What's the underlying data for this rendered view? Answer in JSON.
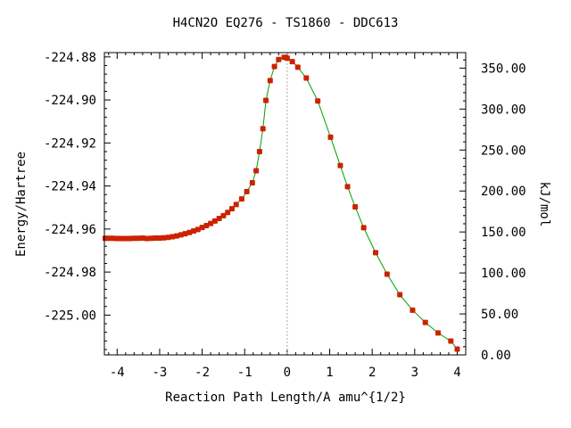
{
  "chart_data": {
    "type": "line",
    "title": "H4CN2O   EQ276 - TS1860 - DDC613",
    "xlabel": "Reaction Path Length/A amu^{1/2}",
    "ylabel": "Energy/Hartree",
    "ylabel_right": "kJ/mol",
    "xlim": [
      -4.3,
      4.2
    ],
    "ylim": [
      -225.0185,
      -224.878
    ],
    "ylim_right": [
      0.0,
      368.9
    ],
    "x_ticks": [
      -4,
      -3,
      -2,
      -1,
      0,
      1,
      2,
      3,
      4
    ],
    "x_tick_labels": [
      "-4",
      "-3",
      "-2",
      "-1",
      "0",
      "1",
      "2",
      "3",
      "4"
    ],
    "y_ticks": [
      -224.88,
      -224.9,
      -224.92,
      -224.94,
      -224.96,
      -224.98,
      -225.0
    ],
    "y_tick_labels": [
      "-224.88",
      "-224.90",
      "-224.92",
      "-224.94",
      "-224.96",
      "-224.98",
      "-225.00"
    ],
    "y_right_ticks": [
      0,
      50,
      100,
      150,
      200,
      250,
      300,
      350
    ],
    "y_right_tick_labels": [
      "0.00",
      "50.00",
      "100.00",
      "150.00",
      "200.00",
      "250.00",
      "300.00",
      "350.00"
    ],
    "ts_marker_x": 0.0,
    "grid": false,
    "series": [
      {
        "line_color": "#00a000",
        "marker_color": "#cc2200",
        "x": [
          -4.28,
          -4.2,
          -4.1,
          -4.0,
          -3.9,
          -3.8,
          -3.7,
          -3.6,
          -3.5,
          -3.4,
          -3.3,
          -3.2,
          -3.1,
          -3.0,
          -2.9,
          -2.8,
          -2.7,
          -2.6,
          -2.5,
          -2.4,
          -2.3,
          -2.2,
          -2.1,
          -2.0,
          -1.9,
          -1.8,
          -1.7,
          -1.6,
          -1.5,
          -1.4,
          -1.3,
          -1.2,
          -1.07,
          -0.95,
          -0.82,
          -0.73,
          -0.65,
          -0.57,
          -0.5,
          -0.4,
          -0.3,
          -0.2,
          -0.07,
          0.0,
          0.12,
          0.25,
          0.45,
          0.72,
          1.02,
          1.25,
          1.42,
          1.6,
          1.8,
          2.08,
          2.35,
          2.65,
          2.95,
          3.25,
          3.55,
          3.85,
          4.0
        ],
        "y": [
          -224.9643,
          -224.9643,
          -224.9643,
          -224.9644,
          -224.9644,
          -224.9644,
          -224.9644,
          -224.9643,
          -224.9643,
          -224.9642,
          -224.9644,
          -224.9643,
          -224.9642,
          -224.9642,
          -224.9641,
          -224.9639,
          -224.9636,
          -224.9632,
          -224.9627,
          -224.9622,
          -224.9616,
          -224.9609,
          -224.9602,
          -224.9593,
          -224.9584,
          -224.9574,
          -224.9563,
          -224.9551,
          -224.9538,
          -224.9523,
          -224.9506,
          -224.9486,
          -224.946,
          -224.9426,
          -224.9385,
          -224.9329,
          -224.924,
          -224.9134,
          -224.9002,
          -224.891,
          -224.8845,
          -224.8812,
          -224.8802,
          -224.8806,
          -224.8822,
          -224.8848,
          -224.8898,
          -224.9005,
          -224.9173,
          -224.9305,
          -224.9403,
          -224.9497,
          -224.9594,
          -224.971,
          -224.981,
          -224.9905,
          -224.9977,
          -225.0034,
          -225.0083,
          -225.0121,
          -225.0158
        ]
      }
    ]
  }
}
